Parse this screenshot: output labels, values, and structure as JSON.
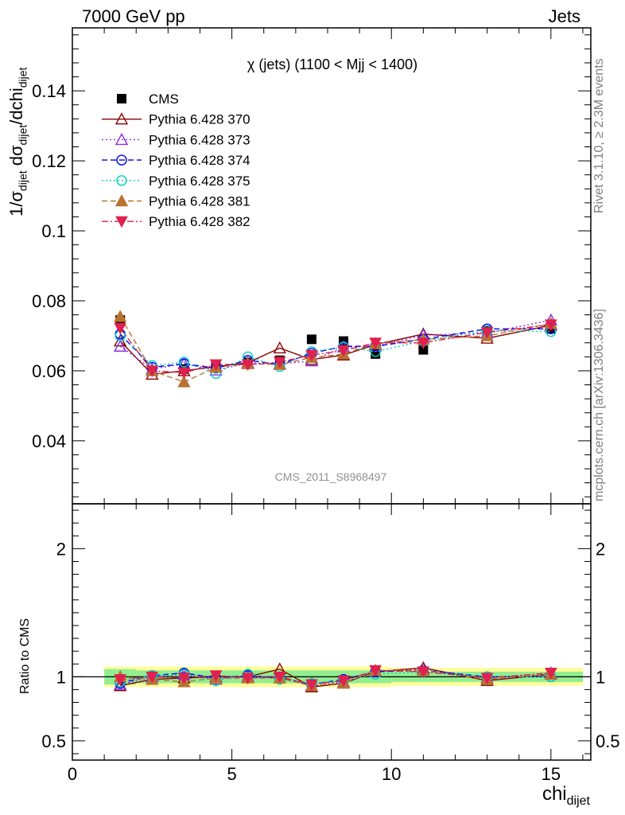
{
  "header": {
    "left": "7000 GeV pp",
    "right": "Jets"
  },
  "side_texts": {
    "rivet": "Rivet 3.1.10, ≥ 2.3M events",
    "mcplots": "mcplots.cern.ch [arXiv:1306.3436]"
  },
  "chart_data": [
    {
      "type": "scatter",
      "title": "χ (jets) (1100 < Mjj < 1400)",
      "watermark": "CMS_2011_S8968497",
      "ylabel_main": "1/σ",
      "ylabel_sub1": "dijet",
      "ylabel_mid": " dσ",
      "ylabel_sub2": "dijet",
      "ylabel_tail": "/dchi",
      "ylabel_sub3": "dijet",
      "xlabel": "chi",
      "xlabel_sub": "dijet",
      "xlim": [
        0,
        16.25
      ],
      "ylim": [
        0.022,
        0.158
      ],
      "yticks": [
        0.04,
        0.06,
        0.08,
        0.1,
        0.12,
        0.14
      ],
      "ytick_labels": [
        "0.04",
        "0.06",
        "0.08",
        "0.1",
        "0.12",
        "0.14"
      ],
      "xticks": [
        0,
        5,
        10,
        15
      ],
      "xtick_labels": [
        "0",
        "5",
        "10",
        "15"
      ],
      "x": [
        1.5,
        2.5,
        3.5,
        4.5,
        5.5,
        6.5,
        7.5,
        8.5,
        9.5,
        11,
        13,
        15
      ],
      "legend_position": "top-left",
      "series": [
        {
          "name": "CMS",
          "color": "#000000",
          "marker": "square-filled",
          "line": "none",
          "values": [
            0.0745,
            0.06,
            0.0605,
            0.0615,
            0.0625,
            0.063,
            0.069,
            0.0685,
            0.0648,
            0.066,
            0.0715,
            0.072
          ]
        },
        {
          "name": "Pythia 6.428 370",
          "color": "#8b0000",
          "marker": "triangle-open",
          "line": "solid",
          "values": [
            0.0685,
            0.059,
            0.06,
            0.0612,
            0.0623,
            0.0665,
            0.0632,
            0.0645,
            0.0675,
            0.0705,
            0.0693,
            0.073
          ]
        },
        {
          "name": "Pythia 6.428 373",
          "color": "#8a2be2",
          "marker": "triangle-open",
          "line": "dotted",
          "values": [
            0.067,
            0.0605,
            0.062,
            0.0602,
            0.0622,
            0.062,
            0.0628,
            0.0668,
            0.067,
            0.0702,
            0.0708,
            0.0745
          ]
        },
        {
          "name": "Pythia 6.428 374",
          "color": "#0000ee",
          "marker": "circle-open",
          "line": "dashed",
          "values": [
            0.0705,
            0.061,
            0.062,
            0.0608,
            0.063,
            0.0618,
            0.065,
            0.067,
            0.067,
            0.069,
            0.072,
            0.072
          ]
        },
        {
          "name": "Pythia 6.428 375",
          "color": "#00d0c0",
          "marker": "circle-open",
          "line": "dotted",
          "values": [
            0.07,
            0.0615,
            0.0625,
            0.0592,
            0.064,
            0.0612,
            0.0655,
            0.0668,
            0.0655,
            0.0685,
            0.0715,
            0.0712
          ]
        },
        {
          "name": "Pythia 6.428 381",
          "color": "#b87333",
          "marker": "triangle-filled",
          "line": "dashed",
          "values": [
            0.0755,
            0.06,
            0.0568,
            0.061,
            0.062,
            0.0618,
            0.0638,
            0.0648,
            0.0678,
            0.069,
            0.07,
            0.0735
          ]
        },
        {
          "name": "Pythia 6.428 382",
          "color": "#e0204e",
          "marker": "triangledown-filled",
          "line": "dashdot",
          "values": [
            0.0722,
            0.06,
            0.0595,
            0.0618,
            0.0618,
            0.0625,
            0.0645,
            0.0658,
            0.068,
            0.068,
            0.071,
            0.0732
          ]
        }
      ]
    },
    {
      "type": "scatter",
      "ylabel": "Ratio to CMS",
      "ylim": [
        0.35,
        2.35
      ],
      "yticks": [
        0.5,
        1,
        2
      ],
      "ytick_labels": [
        "0.5",
        "1",
        "2"
      ],
      "xlim": [
        0,
        16.25
      ],
      "x": [
        1.5,
        2.5,
        3.5,
        4.5,
        5.5,
        6.5,
        7.5,
        8.5,
        9.5,
        11,
        13,
        15
      ],
      "band_edges": [
        1,
        2,
        3,
        4,
        5,
        6,
        7,
        8,
        9,
        10,
        12,
        14,
        16
      ],
      "band_inner": [
        0.06,
        0.05,
        0.05,
        0.05,
        0.05,
        0.05,
        0.05,
        0.05,
        0.05,
        0.04,
        0.04,
        0.04
      ],
      "band_outer": [
        0.08,
        0.08,
        0.08,
        0.08,
        0.08,
        0.08,
        0.08,
        0.08,
        0.08,
        0.07,
        0.07,
        0.07
      ],
      "band_colors": {
        "inner": "#90ee90",
        "outer": "#ffff99"
      },
      "series": [
        {
          "name": "Pythia 6.428 370",
          "values": [
            0.93,
            0.98,
            0.99,
            1.0,
            1.0,
            1.06,
            0.92,
            0.95,
            1.04,
            1.07,
            0.97,
            1.02
          ]
        },
        {
          "name": "Pythia 6.428 373",
          "values": [
            0.94,
            1.0,
            1.02,
            0.98,
            1.0,
            0.99,
            0.93,
            0.96,
            1.04,
            1.06,
            0.99,
            1.03
          ]
        },
        {
          "name": "Pythia 6.428 374",
          "values": [
            0.95,
            1.01,
            1.03,
            0.99,
            1.01,
            0.99,
            0.94,
            0.98,
            1.04,
            1.05,
            1.0,
            1.0
          ]
        },
        {
          "name": "Pythia 6.428 375",
          "values": [
            0.96,
            1.01,
            1.02,
            0.97,
            1.02,
            0.98,
            0.95,
            0.97,
            1.02,
            1.04,
            1.0,
            1.0
          ]
        },
        {
          "name": "Pythia 6.428 381",
          "values": [
            1.0,
            0.98,
            0.96,
            0.99,
            0.99,
            0.99,
            0.93,
            0.95,
            1.05,
            1.05,
            0.98,
            1.02
          ]
        },
        {
          "name": "Pythia 6.428 382",
          "values": [
            0.98,
            1.0,
            0.99,
            1.01,
            0.99,
            1.0,
            0.94,
            0.97,
            1.05,
            1.04,
            0.99,
            1.03
          ]
        }
      ]
    }
  ]
}
